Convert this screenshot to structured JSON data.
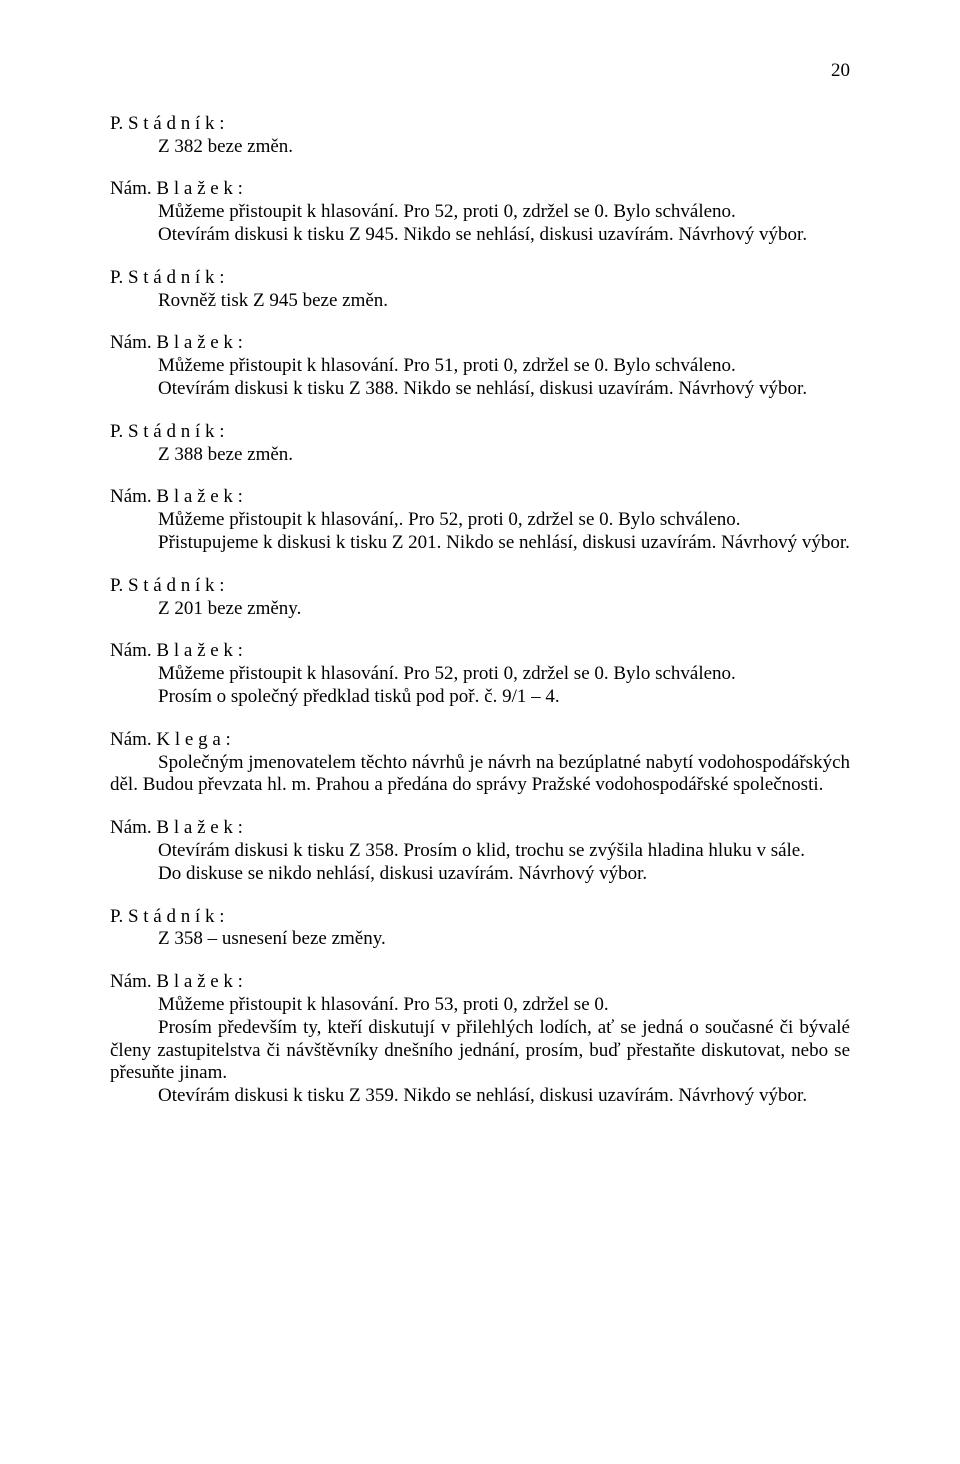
{
  "page_number": "20",
  "blocks": [
    {
      "lines": [
        {
          "text": "P. S t á d n í k :",
          "indent": false
        },
        {
          "text": "Z 382 beze změn.",
          "indent": true
        }
      ]
    },
    {
      "lines": [
        {
          "text": "Nám. B l a ž e k :",
          "indent": false
        },
        {
          "text": "Můžeme přistoupit k hlasování. Pro 52, proti 0, zdržel se 0. Bylo schváleno.",
          "indent": true
        },
        {
          "text": "Otevírám diskusi k tisku Z 945. Nikdo se nehlásí, diskusi uzavírám. Návrhový výbor.",
          "indent": true
        }
      ]
    },
    {
      "lines": [
        {
          "text": "P. S t á d n í k :",
          "indent": false
        },
        {
          "text": "Rovněž tisk Z 945 beze změn.",
          "indent": true
        }
      ]
    },
    {
      "lines": [
        {
          "text": "Nám. B l a ž e k :",
          "indent": false
        },
        {
          "text": "Můžeme přistoupit k hlasování. Pro 51, proti 0, zdržel se 0. Bylo schváleno.",
          "indent": true
        },
        {
          "text": "Otevírám diskusi k tisku Z 388. Nikdo se nehlásí, diskusi uzavírám. Návrhový výbor.",
          "indent": true
        }
      ]
    },
    {
      "lines": [
        {
          "text": "P. S t á d n í k :",
          "indent": false
        },
        {
          "text": "Z 388 beze změn.",
          "indent": true
        }
      ]
    },
    {
      "lines": [
        {
          "text": "Nám. B l a ž e k :",
          "indent": false
        },
        {
          "text": "Můžeme přistoupit k hlasování,. Pro 52, proti 0, zdržel se 0. Bylo schváleno.",
          "indent": true
        },
        {
          "text": "Přistupujeme k diskusi k tisku Z 201. Nikdo se nehlásí, diskusi uzavírám. Návrhový výbor.",
          "indent": true,
          "justify": true
        }
      ]
    },
    {
      "lines": [
        {
          "text": "P. S t á d n í k :",
          "indent": false
        },
        {
          "text": "Z 201 beze změny.",
          "indent": true
        }
      ]
    },
    {
      "lines": [
        {
          "text": "Nám. B l a ž e k :",
          "indent": false
        },
        {
          "text": "Můžeme přistoupit k hlasování. Pro 52, proti 0, zdržel se 0. Bylo schváleno.",
          "indent": true
        },
        {
          "text": "Prosím o společný předklad tisků pod poř. č. 9/1 – 4.",
          "indent": true
        }
      ]
    },
    {
      "lines": [
        {
          "text": "Nám. K l e g a :",
          "indent": false
        },
        {
          "text": "Společným jmenovatelem těchto návrhů je návrh na bezúplatné nabytí vodohospodářských děl. Budou převzata hl. m. Prahou a předána do správy Pražské vodohospodářské společnosti.",
          "indent": true,
          "justify": true
        }
      ]
    },
    {
      "lines": [
        {
          "text": "Nám. B l a ž e k :",
          "indent": false
        },
        {
          "text": "Otevírám diskusi k tisku Z 358. Prosím o klid, trochu se zvýšila hladina hluku v sále.",
          "indent": true
        },
        {
          "text": "Do diskuse se nikdo nehlásí, diskusi uzavírám. Návrhový výbor.",
          "indent": true
        }
      ]
    },
    {
      "lines": [
        {
          "text": "P. S t á d n í k :",
          "indent": false
        },
        {
          "text": "Z 358 – usnesení beze změny.",
          "indent": true
        }
      ]
    },
    {
      "lines": [
        {
          "text": "Nám. B l a ž e k :",
          "indent": false
        },
        {
          "text": "Můžeme přistoupit k hlasování. Pro 53, proti 0, zdržel se 0.",
          "indent": true
        },
        {
          "text": "Prosím především ty, kteří diskutují v přilehlých lodích, ať se jedná o současné či bývalé členy zastupitelstva či návštěvníky dnešního jednání, prosím, buď přestaňte diskutovat, nebo se přesuňte jinam.",
          "indent": true,
          "justify": true
        },
        {
          "text": "Otevírám diskusi k tisku Z 359. Nikdo se nehlásí, diskusi uzavírám. Návrhový výbor.",
          "indent": true
        }
      ]
    }
  ]
}
